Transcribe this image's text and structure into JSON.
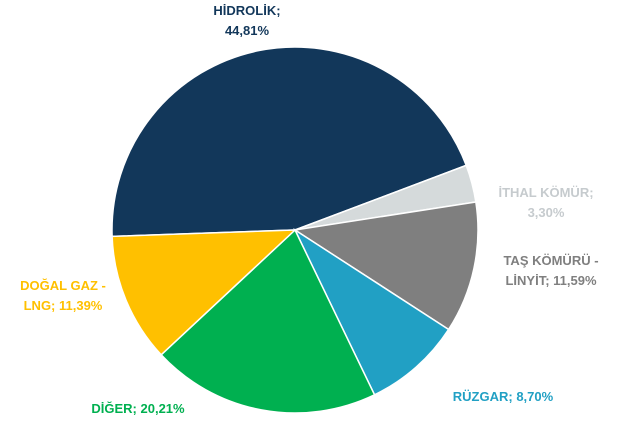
{
  "chart_data": {
    "type": "pie",
    "values": [
      44.81,
      3.3,
      11.59,
      8.7,
      20.21,
      11.39
    ],
    "value_labels": [
      [
        "HİDROLİK;",
        "44,81%"
      ],
      [
        "İTHAL KÖMÜR;",
        "3,30%"
      ],
      [
        "TAŞ KÖMÜRÜ -",
        "LİNYİT; 11,59%"
      ],
      [
        "RÜZGAR; 8,70%"
      ],
      [
        "DİĞER; 20,21%"
      ],
      [
        "DOĞAL GAZ -",
        "LNG; 11,39%"
      ]
    ],
    "colors": [
      "#12375a",
      "#d5dadb",
      "#7f7f7f",
      "#21a0c4",
      "#00b050",
      "#ffc000"
    ]
  }
}
